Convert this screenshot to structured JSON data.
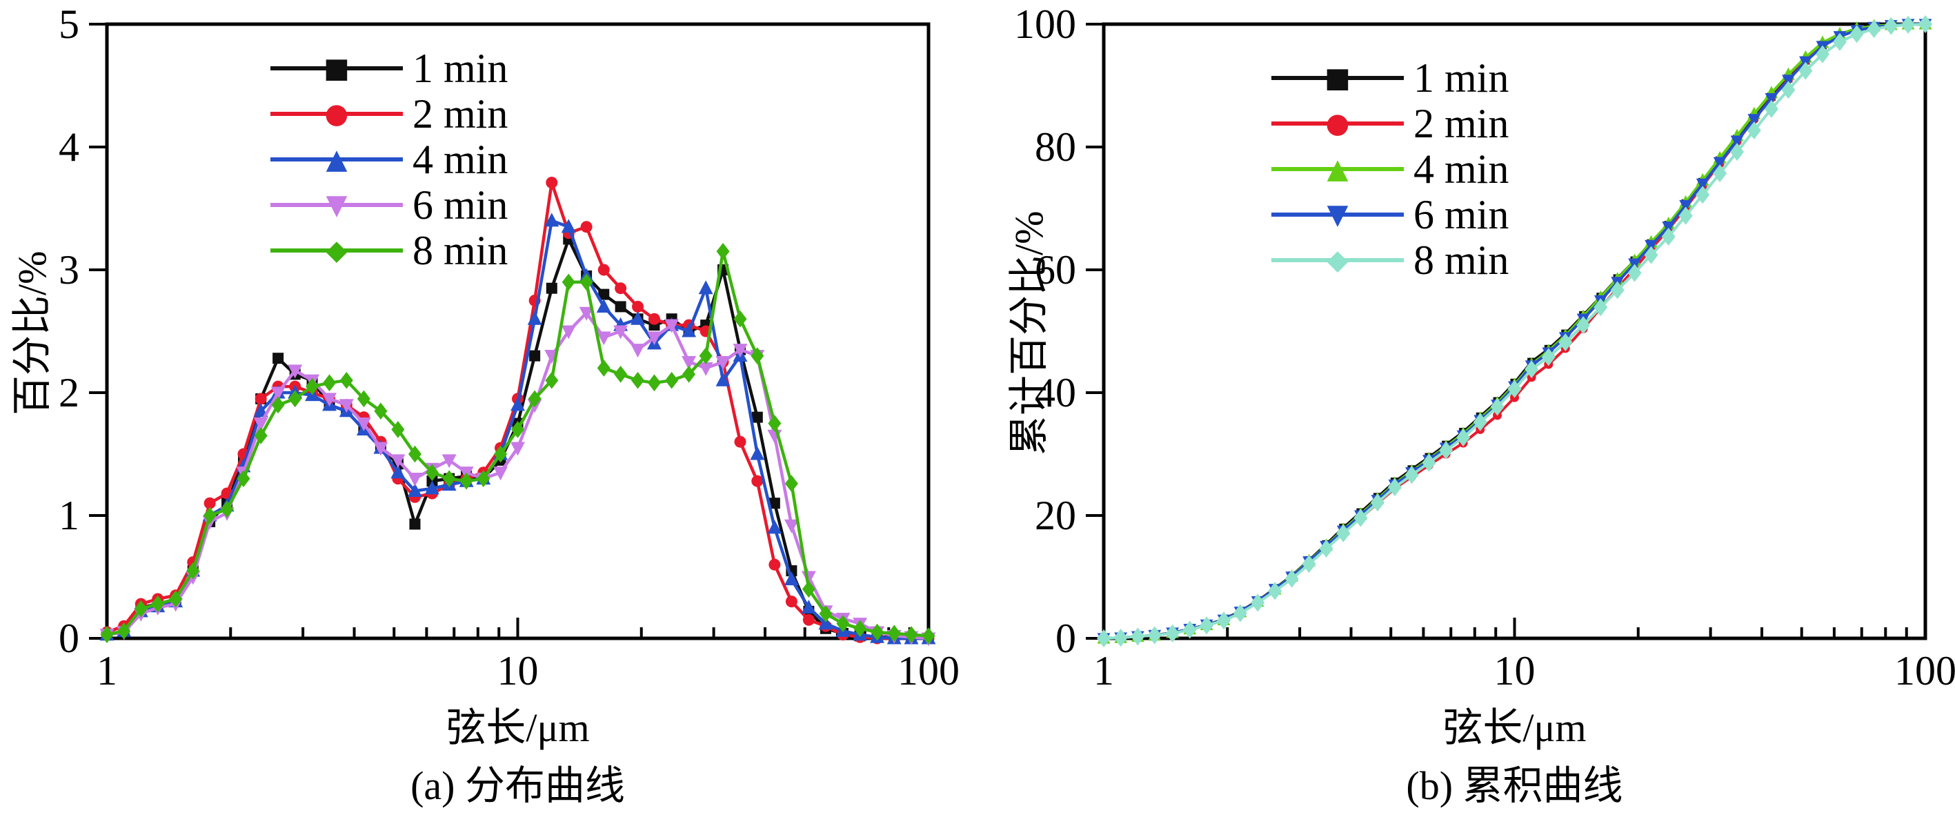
{
  "page": {
    "background": "#ffffff",
    "text_color": "#000000"
  },
  "chart_data": [
    {
      "type": "line",
      "panel_id": "a",
      "caption": "(a) 分布曲线",
      "xlabel": "弦长/μm",
      "ylabel": "百分比/%",
      "x_scale": "log",
      "xlim": [
        1,
        100
      ],
      "ylim": [
        0,
        5
      ],
      "x_ticks": [
        "1",
        "10",
        "100"
      ],
      "y_ticks": [
        "0",
        "1",
        "2",
        "3",
        "4",
        "5"
      ],
      "grid": "off",
      "legend_position": "upper-left-inside",
      "x": [
        1.0,
        1.1,
        1.21,
        1.33,
        1.47,
        1.62,
        1.78,
        1.96,
        2.15,
        2.37,
        2.61,
        2.87,
        3.16,
        3.48,
        3.83,
        4.22,
        4.64,
        5.11,
        5.62,
        6.19,
        6.81,
        7.5,
        8.25,
        9.08,
        10.0,
        11.0,
        12.1,
        13.3,
        14.7,
        16.2,
        17.8,
        19.6,
        21.5,
        23.7,
        26.1,
        28.7,
        31.6,
        34.8,
        38.3,
        42.2,
        46.4,
        51.1,
        56.2,
        61.9,
        68.1,
        75.0,
        82.5,
        90.8,
        100.0
      ],
      "series": [
        {
          "name": "1 min",
          "color": "#101010",
          "marker": "square",
          "values": [
            0.03,
            0.05,
            0.25,
            0.28,
            0.3,
            0.55,
            0.95,
            1.1,
            1.45,
            1.95,
            2.28,
            2.15,
            2.1,
            1.9,
            1.85,
            1.7,
            1.55,
            1.42,
            0.93,
            1.28,
            1.3,
            1.32,
            1.3,
            1.45,
            1.75,
            2.3,
            2.85,
            3.25,
            2.95,
            2.8,
            2.7,
            2.6,
            2.55,
            2.6,
            2.5,
            2.55,
            3.0,
            2.35,
            1.8,
            1.1,
            0.55,
            0.22,
            0.08,
            0.04,
            0.02,
            0.01,
            0.01,
            0.0,
            0.0
          ]
        },
        {
          "name": "2 min",
          "color": "#e8192c",
          "marker": "circle",
          "values": [
            0.05,
            0.1,
            0.28,
            0.32,
            0.35,
            0.62,
            1.1,
            1.18,
            1.5,
            1.95,
            2.05,
            2.05,
            2.0,
            1.95,
            1.9,
            1.8,
            1.6,
            1.3,
            1.15,
            1.18,
            1.25,
            1.3,
            1.35,
            1.55,
            1.95,
            2.75,
            3.71,
            3.3,
            3.35,
            3.0,
            2.85,
            2.7,
            2.6,
            2.55,
            2.55,
            2.5,
            2.25,
            1.6,
            1.28,
            0.6,
            0.3,
            0.15,
            0.1,
            0.03,
            0.01,
            0.0,
            0.0,
            0.0,
            0.0
          ]
        },
        {
          "name": "4 min",
          "color": "#2551cb",
          "marker": "triangle-up",
          "values": [
            0.03,
            0.06,
            0.22,
            0.26,
            0.3,
            0.55,
            1.0,
            1.08,
            1.4,
            1.85,
            2.0,
            2.0,
            1.98,
            1.9,
            1.85,
            1.7,
            1.55,
            1.35,
            1.2,
            1.22,
            1.25,
            1.28,
            1.3,
            1.5,
            1.9,
            2.6,
            3.4,
            3.35,
            2.95,
            2.7,
            2.55,
            2.6,
            2.4,
            2.55,
            2.5,
            2.85,
            2.1,
            2.3,
            1.5,
            0.9,
            0.48,
            0.25,
            0.12,
            0.06,
            0.03,
            0.01,
            0.0,
            0.0,
            0.0
          ]
        },
        {
          "name": "6 min",
          "color": "#c87ae6",
          "marker": "triangle-down",
          "values": [
            0.03,
            0.05,
            0.2,
            0.25,
            0.28,
            0.5,
            0.95,
            1.02,
            1.35,
            1.75,
            2.0,
            2.18,
            2.1,
            1.95,
            1.9,
            1.75,
            1.55,
            1.45,
            1.3,
            1.38,
            1.45,
            1.35,
            1.3,
            1.35,
            1.55,
            1.9,
            2.3,
            2.5,
            2.65,
            2.45,
            2.5,
            2.35,
            2.45,
            2.55,
            2.25,
            2.2,
            2.25,
            2.35,
            2.3,
            1.65,
            0.92,
            0.5,
            0.22,
            0.16,
            0.12,
            0.05,
            0.02,
            0.01,
            0.0
          ]
        },
        {
          "name": "8 min",
          "color": "#3db30e",
          "marker": "diamond",
          "values": [
            0.03,
            0.06,
            0.24,
            0.28,
            0.32,
            0.55,
            1.0,
            1.05,
            1.3,
            1.65,
            1.9,
            1.95,
            2.05,
            2.08,
            2.1,
            1.95,
            1.85,
            1.7,
            1.5,
            1.35,
            1.3,
            1.28,
            1.3,
            1.5,
            1.7,
            1.95,
            2.1,
            2.9,
            2.9,
            2.2,
            2.15,
            2.1,
            2.08,
            2.1,
            2.15,
            2.3,
            3.15,
            2.6,
            2.3,
            1.75,
            1.26,
            0.4,
            0.2,
            0.12,
            0.08,
            0.05,
            0.04,
            0.03,
            0.02
          ]
        }
      ]
    },
    {
      "type": "line",
      "panel_id": "b",
      "caption": "(b) 累积曲线",
      "xlabel": "弦长/μm",
      "ylabel": "累计百分比/%",
      "x_scale": "log",
      "xlim": [
        1,
        100
      ],
      "ylim": [
        0,
        100
      ],
      "x_ticks": [
        "1",
        "10",
        "100"
      ],
      "y_ticks": [
        "0",
        "20",
        "40",
        "60",
        "80",
        "100"
      ],
      "grid": "off",
      "legend_position": "upper-left-inside",
      "x": [
        1.0,
        1.1,
        1.21,
        1.33,
        1.47,
        1.62,
        1.78,
        1.96,
        2.15,
        2.37,
        2.61,
        2.87,
        3.16,
        3.48,
        3.83,
        4.22,
        4.64,
        5.11,
        5.62,
        6.19,
        6.81,
        7.5,
        8.25,
        9.08,
        10.0,
        11.0,
        12.1,
        13.3,
        14.7,
        16.2,
        17.8,
        19.6,
        21.5,
        23.7,
        26.1,
        28.7,
        31.6,
        34.8,
        38.3,
        42.2,
        46.4,
        51.1,
        56.2,
        61.9,
        68.1,
        75.0,
        82.5,
        90.8,
        100.0
      ],
      "series": [
        {
          "name": "1 min",
          "color": "#101010",
          "marker": "square",
          "values": [
            0,
            0.1,
            0.3,
            0.5,
            0.9,
            1.5,
            2.2,
            3.1,
            4.4,
            6.1,
            8.1,
            10.2,
            12.7,
            15.3,
            18.0,
            20.5,
            23.0,
            25.5,
            27.5,
            29.5,
            31.5,
            33.6,
            36.1,
            38.6,
            41.6,
            45.0,
            47.1,
            49.6,
            52.6,
            55.6,
            58.6,
            61.5,
            64.3,
            67.3,
            70.8,
            74.3,
            77.8,
            81.3,
            84.8,
            88.2,
            91.2,
            94.1,
            96.6,
            98.1,
            99.1,
            99.6,
            99.9,
            100,
            100
          ]
        },
        {
          "name": "2 min",
          "color": "#e8192c",
          "marker": "circle",
          "values": [
            0,
            0.1,
            0.3,
            0.5,
            0.9,
            1.5,
            2.2,
            3.0,
            4.3,
            6.0,
            8.0,
            10.0,
            12.4,
            14.8,
            17.2,
            19.6,
            22.0,
            24.4,
            26.3,
            28.2,
            30.0,
            31.8,
            34.0,
            36.3,
            39.2,
            42.5,
            44.6,
            47.2,
            50.4,
            53.8,
            57.0,
            60.2,
            63.4,
            66.6,
            70.1,
            73.7,
            77.3,
            80.9,
            84.5,
            88.0,
            91.0,
            94.0,
            96.5,
            98.0,
            99.0,
            99.6,
            99.9,
            100,
            100
          ]
        },
        {
          "name": "4 min",
          "color": "#63cf12",
          "marker": "triangle-up",
          "values": [
            0,
            0.1,
            0.3,
            0.5,
            0.9,
            1.5,
            2.2,
            3.0,
            4.3,
            6.0,
            8.0,
            10.1,
            12.6,
            15.1,
            17.7,
            20.2,
            22.7,
            25.2,
            27.2,
            29.2,
            31.2,
            33.3,
            35.8,
            38.3,
            41.3,
            44.6,
            46.8,
            49.3,
            52.4,
            55.5,
            58.5,
            61.5,
            64.5,
            67.5,
            71.0,
            74.6,
            78.2,
            81.8,
            85.4,
            88.8,
            91.8,
            94.6,
            97.0,
            98.4,
            99.3,
            99.7,
            99.9,
            100,
            100
          ]
        },
        {
          "name": "6 min",
          "color": "#2551cb",
          "marker": "triangle-down",
          "values": [
            0,
            0.1,
            0.3,
            0.5,
            0.9,
            1.5,
            2.2,
            3.0,
            4.3,
            6.0,
            8.0,
            10.0,
            12.5,
            15.0,
            17.5,
            20.0,
            22.5,
            25.0,
            27.0,
            29.0,
            31.0,
            33.0,
            35.5,
            38.0,
            41.0,
            44.4,
            46.5,
            49.0,
            52.0,
            55.0,
            58.0,
            61.0,
            64.0,
            67.0,
            70.5,
            74.0,
            77.5,
            81.0,
            84.5,
            87.9,
            90.9,
            93.9,
            96.4,
            98.0,
            99.0,
            99.5,
            99.8,
            100,
            100
          ]
        },
        {
          "name": "8 min",
          "color": "#8fe2cb",
          "marker": "diamond",
          "values": [
            0,
            0.1,
            0.3,
            0.5,
            0.8,
            1.4,
            2.1,
            2.9,
            4.1,
            5.8,
            7.7,
            9.7,
            12.1,
            14.6,
            17.1,
            19.6,
            22.1,
            24.6,
            26.6,
            28.6,
            30.6,
            32.7,
            35.2,
            37.7,
            40.6,
            43.8,
            45.8,
            48.2,
            51.0,
            53.9,
            56.7,
            59.5,
            62.4,
            65.4,
            68.8,
            72.2,
            75.7,
            79.2,
            82.7,
            86.2,
            89.3,
            92.4,
            95.1,
            97.1,
            98.4,
            99.2,
            99.7,
            99.9,
            100
          ]
        }
      ]
    }
  ]
}
